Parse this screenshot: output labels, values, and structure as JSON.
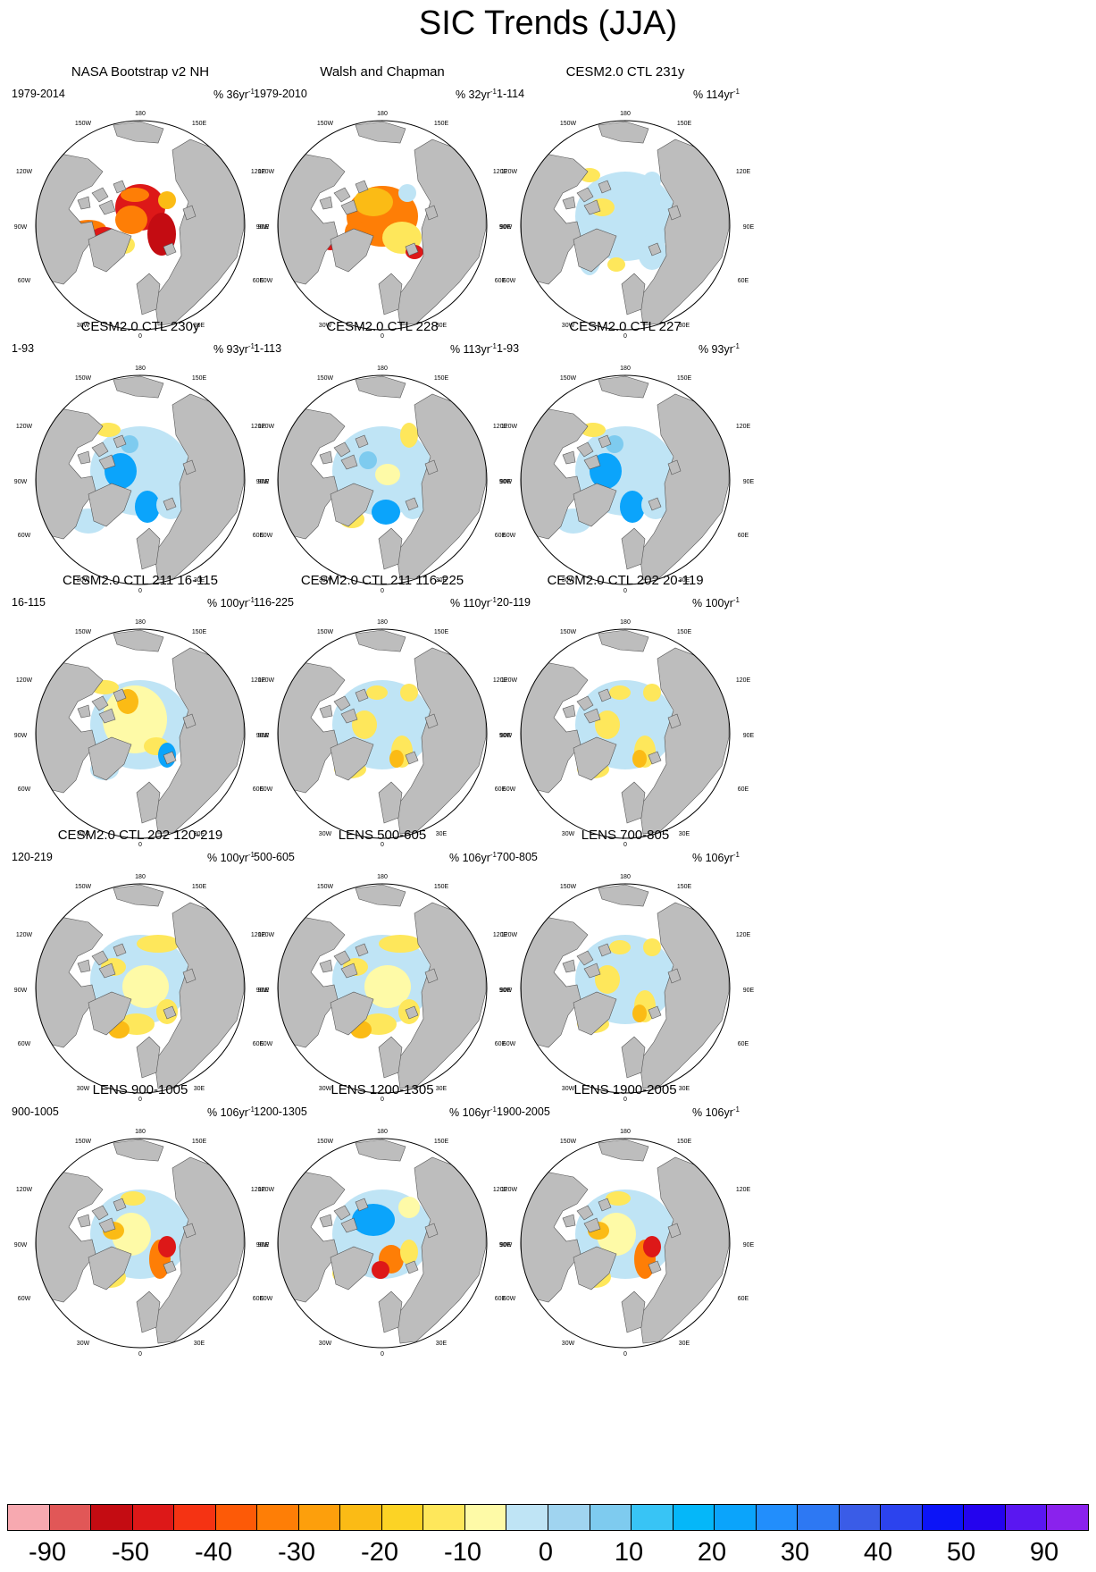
{
  "title": "SIC Trends (JJA)",
  "legend_colors": [
    "#f7a9b0",
    "#e15757",
    "#c40c12",
    "#dd1818",
    "#f53313",
    "#fd5a07",
    "#fe7e06",
    "#fd9f0c",
    "#fbbb15",
    "#fcd325",
    "#fee75b",
    "#fefaa7",
    "#bfe4f5",
    "#a0d4f0",
    "#7ecbef",
    "#38c4f5",
    "#05b7f9",
    "#0ba4fb",
    "#228efc",
    "#2d78f3",
    "#3a5ce7",
    "#2c43ee",
    "#0c14f7",
    "#2403ee",
    "#5a17f1",
    "#8a22ed"
  ],
  "legend_labels": [
    "-90",
    "-50",
    "-40",
    "-30",
    "-20",
    "-10",
    "0",
    "10",
    "20",
    "30",
    "40",
    "50",
    "90"
  ],
  "colors": {
    "land": "#bdbdbd",
    "ocean": "#ffffff",
    "outline": "#000000"
  },
  "map_labels": {
    "top": "180",
    "bottom": "0",
    "left": "90W",
    "right": "90E",
    "upper_left": "150W",
    "upper_right": "150E",
    "mid_upper_left": "120W",
    "mid_upper_right": "120E",
    "mid_lower_left": "60W",
    "mid_lower_right": "60E",
    "lower_left": "30W",
    "lower_right": "30E"
  },
  "panels": [
    {
      "title": "NASA Bootstrap v2 NH",
      "period": "1979-2014",
      "pct": "% 36yr",
      "pct_sup": "-1",
      "pattern": "obs1"
    },
    {
      "title": "Walsh and Chapman",
      "period": "1979-2010",
      "pct": "% 32yr",
      "pct_sup": "-1",
      "pattern": "obs2"
    },
    {
      "title": "CESM2.0 CTL 231y",
      "period": "1-114",
      "pct": "% 114yr",
      "pct_sup": "-1",
      "pattern": "blue"
    },
    {
      "title": "CESM2.0 CTL 230y",
      "period": "1-93",
      "pct": "% 93yr",
      "pct_sup": "-1",
      "pattern": "blue-dark"
    },
    {
      "title": "CESM2.0 CTL 228",
      "period": "1-113",
      "pct": "% 113yr",
      "pct_sup": "-1",
      "pattern": "blue-mix"
    },
    {
      "title": "CESM2.0 CTL 227",
      "period": "1-93",
      "pct": "% 93yr",
      "pct_sup": "-1",
      "pattern": "blue-dark"
    },
    {
      "title": "CESM2.0 CTL 211 16-115",
      "period": "16-115",
      "pct": "% 100yr",
      "pct_sup": "-1",
      "pattern": "yellow-center"
    },
    {
      "title": "CESM2.0 CTL 211 116-225",
      "period": "116-225",
      "pct": "% 110yr",
      "pct_sup": "-1",
      "pattern": "mix"
    },
    {
      "title": "CESM2.0 CTL 202 20-119",
      "period": "20-119",
      "pct": "% 100yr",
      "pct_sup": "-1",
      "pattern": "mix"
    },
    {
      "title": "CESM2.0 CTL 202 120-219",
      "period": "120-219",
      "pct": "% 100yr",
      "pct_sup": "-1",
      "pattern": "mix-yellow"
    },
    {
      "title": "LENS 500-605",
      "period": "500-605",
      "pct": "% 106yr",
      "pct_sup": "-1",
      "pattern": "mix-yellow"
    },
    {
      "title": "LENS 700-805",
      "period": "700-805",
      "pct": "% 106yr",
      "pct_sup": "-1",
      "pattern": "mix"
    },
    {
      "title": "LENS 900-1005",
      "period": "900-1005",
      "pct": "% 106yr",
      "pct_sup": "-1",
      "pattern": "orange-mix"
    },
    {
      "title": "LENS 1200-1305",
      "period": "1200-1305",
      "pct": "% 106yr",
      "pct_sup": "-1",
      "pattern": "blue-orange"
    },
    {
      "title": "LENS 1900-2005",
      "period": "1900-2005",
      "pct": "% 106yr",
      "pct_sup": "-1",
      "pattern": "orange-mix"
    }
  ]
}
